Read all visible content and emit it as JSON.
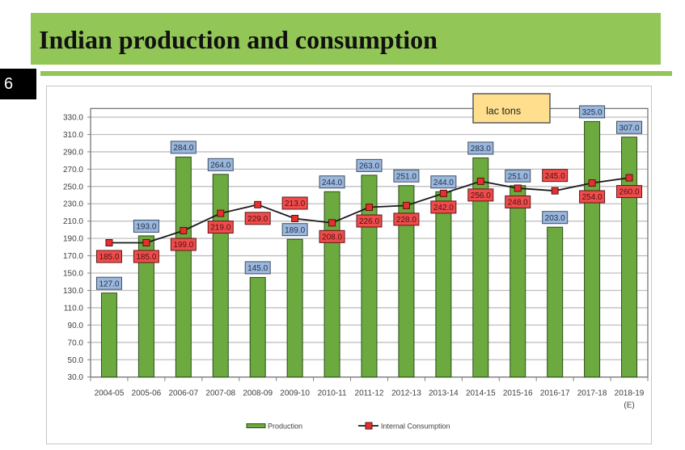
{
  "slide": {
    "title": "Indian production and consumption",
    "page_number": "6"
  },
  "colors": {
    "banner": "#92C656",
    "divider": "#92C656",
    "badge_background": "#000000",
    "annotation_fill": "#FFDF8E"
  },
  "chart_data": {
    "type": "bar",
    "title": "",
    "xlabel": "",
    "ylabel": "",
    "annotation": "lac tons",
    "categories": [
      "2004-05",
      "2005-06",
      "2006-07",
      "2007-08",
      "2008-09",
      "2009-10",
      "2010-11",
      "2011-12",
      "2012-13",
      "2013-14",
      "2014-15",
      "2015-16",
      "2016-17",
      "2017-18",
      "2018-19 (E)"
    ],
    "x_tick_labels": [
      [
        "2004-05"
      ],
      [
        "2005-06"
      ],
      [
        "2006-07"
      ],
      [
        "2007-08"
      ],
      [
        "2008-09"
      ],
      [
        "2009-10"
      ],
      [
        "2010-11"
      ],
      [
        "2011-12"
      ],
      [
        "2012-13"
      ],
      [
        "2013-14"
      ],
      [
        "2014-15"
      ],
      [
        "2015-16"
      ],
      [
        "2016-17"
      ],
      [
        "2017-18"
      ],
      [
        "2018-19",
        "(E)"
      ]
    ],
    "ylim": [
      30,
      340
    ],
    "yticks": [
      30,
      50,
      70,
      90,
      110,
      130,
      150,
      170,
      190,
      210,
      230,
      250,
      270,
      290,
      310,
      330
    ],
    "ytick_labels": [
      "30.0",
      "50.0",
      "70.0",
      "90.0",
      "110.0",
      "130.0",
      "150.0",
      "170.0",
      "190.0",
      "210.0",
      "230.0",
      "250.0",
      "270.0",
      "290.0",
      "310.0",
      "330.0"
    ],
    "grid": true,
    "legend": {
      "position": "bottom"
    },
    "series": [
      {
        "name": "Production",
        "type": "bar",
        "color": "#6CAA3F",
        "label_color": "#9BB7DB",
        "values": [
          127,
          193,
          284,
          264,
          145,
          189,
          244,
          263,
          251,
          244,
          283,
          251,
          203,
          325,
          307
        ],
        "data_labels": [
          "127.0",
          "193.0",
          "284.0",
          "264.0",
          "145.0",
          "189.0",
          "244.0",
          "263.0",
          "251.0",
          "244.0",
          "283.0",
          "251.0",
          "203.0",
          "325.0",
          "307.0"
        ],
        "label_position": "above"
      },
      {
        "name": "Internal Consumption",
        "type": "line",
        "color": "#1A1A1A",
        "marker_color": "#E4302F",
        "label_color": "#EF4C4C",
        "values": [
          185,
          185,
          199,
          219,
          229,
          213,
          208,
          226,
          228,
          242,
          256,
          248,
          245,
          254,
          260
        ],
        "data_labels": [
          "185.0",
          "185.0",
          "199.0",
          "219.0",
          "229.0",
          "213.0",
          "208.0",
          "226.0",
          "228.0",
          "242.0",
          "256.0",
          "248.0",
          "245.0",
          "254.0",
          "260.0"
        ],
        "label_positions": [
          "below",
          "below",
          "below",
          "below",
          "below",
          "above",
          "below",
          "below",
          "below",
          "below",
          "below",
          "below",
          "above",
          "below",
          "below"
        ]
      }
    ]
  }
}
